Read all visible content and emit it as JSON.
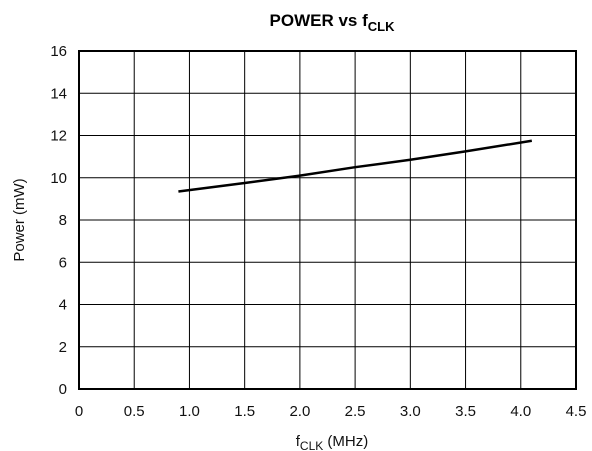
{
  "chart_data": {
    "type": "line",
    "title": "POWER vs f",
    "title_subscript": "CLK",
    "xlabel": "f",
    "xlabel_subscript": "CLK",
    "xlabel_suffix": " (MHz)",
    "ylabel": "Power (mW)",
    "xlim": [
      0,
      4.5
    ],
    "ylim": [
      0,
      16
    ],
    "x_ticks": [
      0,
      0.5,
      1.0,
      1.5,
      2.0,
      2.5,
      3.0,
      3.5,
      4.0,
      4.5
    ],
    "x_tick_labels": [
      "0",
      "0.5",
      "1.0",
      "1.5",
      "2.0",
      "2.5",
      "3.0",
      "3.5",
      "4.0",
      "4.5"
    ],
    "y_ticks": [
      0,
      2,
      4,
      6,
      8,
      10,
      12,
      14,
      16
    ],
    "y_tick_labels": [
      "0",
      "2",
      "4",
      "6",
      "8",
      "10",
      "12",
      "14",
      "16"
    ],
    "grid": true,
    "legend": "none",
    "series": [
      {
        "color": "#000000",
        "points": [
          {
            "x": 0.9,
            "y": 9.35
          },
          {
            "x": 1.5,
            "y": 9.75
          },
          {
            "x": 2.0,
            "y": 10.1
          },
          {
            "x": 2.5,
            "y": 10.5
          },
          {
            "x": 3.0,
            "y": 10.85
          },
          {
            "x": 3.5,
            "y": 11.25
          },
          {
            "x": 4.1,
            "y": 11.75
          }
        ]
      }
    ]
  }
}
